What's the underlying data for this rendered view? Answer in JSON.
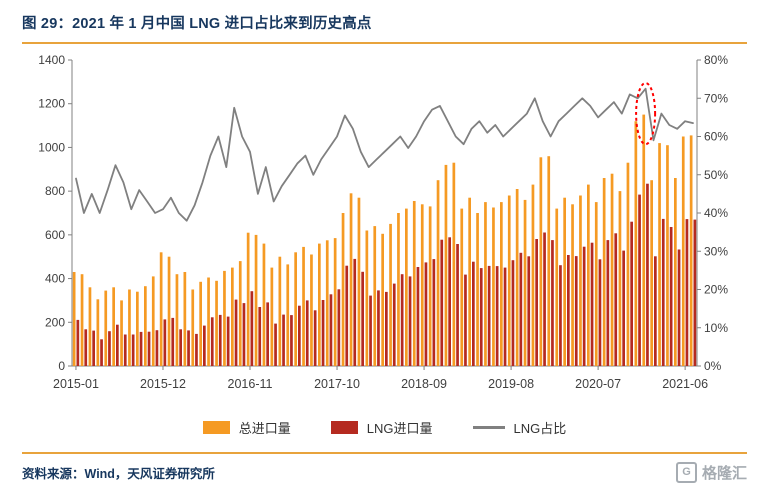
{
  "figure": {
    "title": "图 29：2021 年 1 月中国 LNG 进口占比来到历史高点",
    "accent_color": "#E8A33C"
  },
  "legend": {
    "items": [
      {
        "label": "总进口量",
        "color": "#F59A23",
        "kind": "bar"
      },
      {
        "label": "LNG进口量",
        "color": "#B52A20",
        "kind": "bar"
      },
      {
        "label": "LNG占比",
        "color": "#808080",
        "kind": "line"
      }
    ]
  },
  "source": {
    "text": "资料来源：Wind，天风证券研究所"
  },
  "logo": {
    "icon_letter": "G",
    "text": "格隆汇"
  },
  "chart_data": {
    "type": "bar",
    "title": "图 29：2021 年 1 月中国 LNG 进口占比来到历史高点",
    "xlabel": "",
    "ylabel_left": "",
    "ylabel_right": "",
    "grid": false,
    "legend_position": "bottom",
    "x": [
      "2015-01",
      "2015-02",
      "2015-03",
      "2015-04",
      "2015-05",
      "2015-06",
      "2015-07",
      "2015-08",
      "2015-09",
      "2015-10",
      "2015-11",
      "2015-12",
      "2016-01",
      "2016-02",
      "2016-03",
      "2016-04",
      "2016-05",
      "2016-06",
      "2016-07",
      "2016-08",
      "2016-09",
      "2016-10",
      "2016-11",
      "2016-12",
      "2017-01",
      "2017-02",
      "2017-03",
      "2017-04",
      "2017-05",
      "2017-06",
      "2017-07",
      "2017-08",
      "2017-09",
      "2017-10",
      "2017-11",
      "2017-12",
      "2018-01",
      "2018-02",
      "2018-03",
      "2018-04",
      "2018-05",
      "2018-06",
      "2018-07",
      "2018-08",
      "2018-09",
      "2018-10",
      "2018-11",
      "2018-12",
      "2019-01",
      "2019-02",
      "2019-03",
      "2019-04",
      "2019-05",
      "2019-06",
      "2019-07",
      "2019-08",
      "2019-09",
      "2019-10",
      "2019-11",
      "2019-12",
      "2020-01",
      "2020-02",
      "2020-03",
      "2020-04",
      "2020-05",
      "2020-06",
      "2020-07",
      "2020-08",
      "2020-09",
      "2020-10",
      "2020-11",
      "2020-12",
      "2021-01",
      "2021-02",
      "2021-03",
      "2021-04",
      "2021-05",
      "2021-06",
      "2021-07"
    ],
    "series": [
      {
        "name": "总进口量",
        "type": "bar",
        "axis": "left",
        "color": "#F59A23",
        "values": [
          430,
          420,
          360,
          305,
          345,
          360,
          300,
          350,
          340,
          365,
          410,
          520,
          500,
          420,
          430,
          350,
          385,
          405,
          390,
          435,
          450,
          480,
          610,
          600,
          560,
          450,
          500,
          465,
          520,
          545,
          510,
          560,
          575,
          585,
          700,
          790,
          770,
          620,
          640,
          605,
          650,
          700,
          720,
          755,
          740,
          730,
          850,
          920,
          930,
          720,
          770,
          700,
          750,
          725,
          750,
          780,
          810,
          760,
          830,
          955,
          960,
          720,
          770,
          740,
          780,
          830,
          750,
          860,
          880,
          800,
          930,
          1120,
          1150,
          850,
          1020,
          1010,
          860,
          1050,
          1055
        ]
      },
      {
        "name": "LNG进口量",
        "type": "bar",
        "axis": "left",
        "color": "#B52A20",
        "values": [
          211,
          168,
          162,
          122,
          159,
          189,
          144,
          144,
          156,
          157,
          164,
          213,
          220,
          168,
          163,
          147,
          185,
          223,
          234,
          226,
          304,
          288,
          342,
          270,
          291,
          194,
          235,
          233,
          276,
          300,
          255,
          302,
          328,
          351,
          459,
          490,
          431,
          322,
          346,
          339,
          377,
          420,
          410,
          453,
          474,
          489,
          578,
          589,
          558,
          418,
          477,
          448,
          458,
          457,
          450,
          484,
          518,
          502,
          581,
          611,
          576,
          461,
          508,
          503,
          546,
          564,
          488,
          576,
          607,
          528,
          660,
          784,
          834,
          502,
          673,
          636,
          533,
          672,
          670
        ]
      },
      {
        "name": "LNG占比",
        "type": "line",
        "axis": "right",
        "color": "#808080",
        "values": [
          49,
          40,
          45,
          40,
          46,
          52.5,
          48,
          41,
          46,
          43,
          40,
          41,
          44,
          40,
          38,
          42,
          48,
          55,
          60,
          52,
          67.5,
          60,
          56,
          45,
          52,
          43,
          47,
          50,
          53,
          55,
          50,
          54,
          57,
          60,
          65.5,
          62,
          56,
          52,
          54,
          56,
          58,
          60,
          57,
          60,
          64,
          67,
          68,
          64,
          60,
          58,
          62,
          64,
          61,
          63,
          60,
          62,
          64,
          66,
          70,
          64,
          60,
          64,
          66,
          68,
          70,
          68,
          65,
          67,
          69,
          66,
          71,
          70,
          72.5,
          59,
          66,
          63,
          62,
          64,
          63.5
        ]
      }
    ],
    "left_axis": {
      "min": 0,
      "max": 1400,
      "tick_step": 200,
      "labels": [
        "0",
        "200",
        "400",
        "600",
        "800",
        "1000",
        "1200",
        "1400"
      ]
    },
    "right_axis": {
      "min": 0,
      "max": 80,
      "tick_step": 10,
      "labels": [
        "0%",
        "10%",
        "20%",
        "30%",
        "40%",
        "50%",
        "60%",
        "70%",
        "80%"
      ]
    },
    "x_ticks": {
      "indices": [
        0,
        11,
        22,
        33,
        44,
        55,
        66,
        77
      ],
      "labels": [
        "2015-01",
        "2015-12",
        "2016-11",
        "2017-10",
        "2018-09",
        "2019-08",
        "2020-07",
        "2021-06"
      ]
    },
    "annotation": {
      "shape": "dashed-ellipse",
      "color": "#FF0000",
      "x_index": 72,
      "pct_center": 66,
      "pct_half_range": 8
    }
  }
}
